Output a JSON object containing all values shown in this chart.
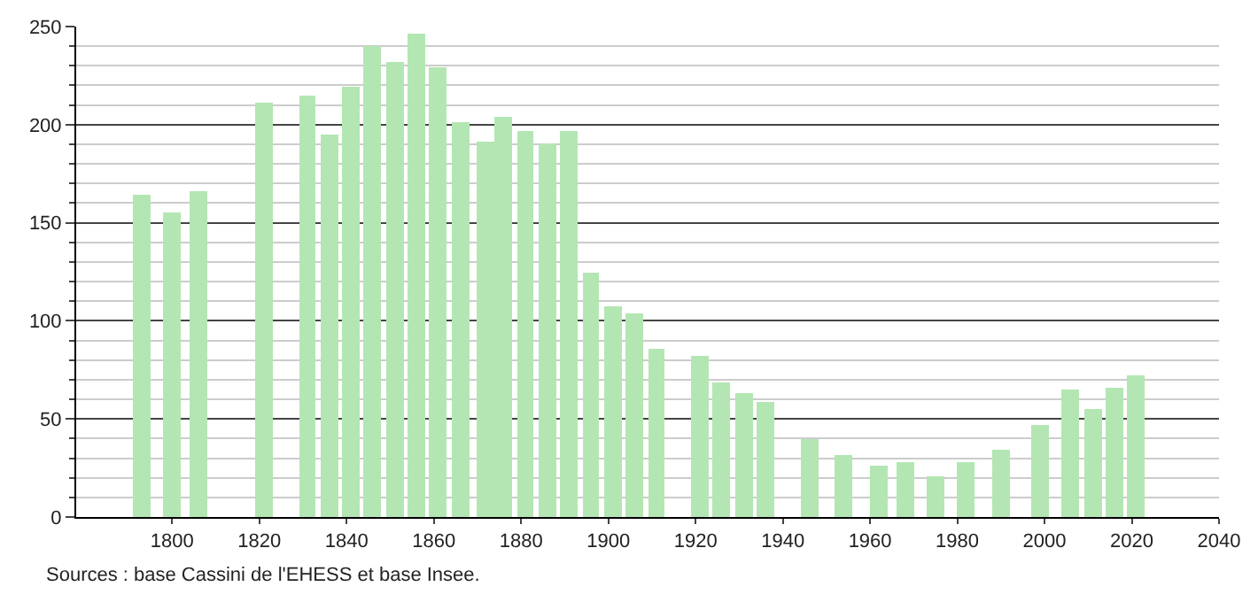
{
  "chart_data": {
    "type": "bar",
    "x": [
      1793,
      1800,
      1806,
      1821,
      1831,
      1836,
      1841,
      1846,
      1851,
      1856,
      1861,
      1866,
      1872,
      1876,
      1881,
      1886,
      1891,
      1896,
      1901,
      1906,
      1911,
      1921,
      1926,
      1931,
      1936,
      1946,
      1954,
      1962,
      1968,
      1975,
      1982,
      1990,
      1999,
      2006,
      2011,
      2016,
      2021
    ],
    "values": [
      164,
      155,
      166,
      211,
      215,
      195,
      219,
      240,
      232,
      246,
      229,
      201,
      191,
      204,
      197,
      190,
      197,
      125,
      107,
      104,
      86,
      82,
      69,
      63,
      59,
      40,
      32,
      26,
      28,
      21,
      28,
      34,
      47,
      65,
      55,
      66,
      72
    ],
    "color": "#b3e6b3",
    "xlim": [
      1778,
      2040
    ],
    "xticks": [
      1800,
      1820,
      1840,
      1860,
      1880,
      1900,
      1920,
      1940,
      1960,
      1980,
      2000,
      2020,
      2040
    ],
    "ylim": [
      0,
      250
    ],
    "yticks": [
      0,
      50,
      100,
      150,
      200,
      250
    ],
    "grid": "y",
    "annotations": [
      "Sources : base Cassini de l'EHESS et base Insee."
    ]
  }
}
